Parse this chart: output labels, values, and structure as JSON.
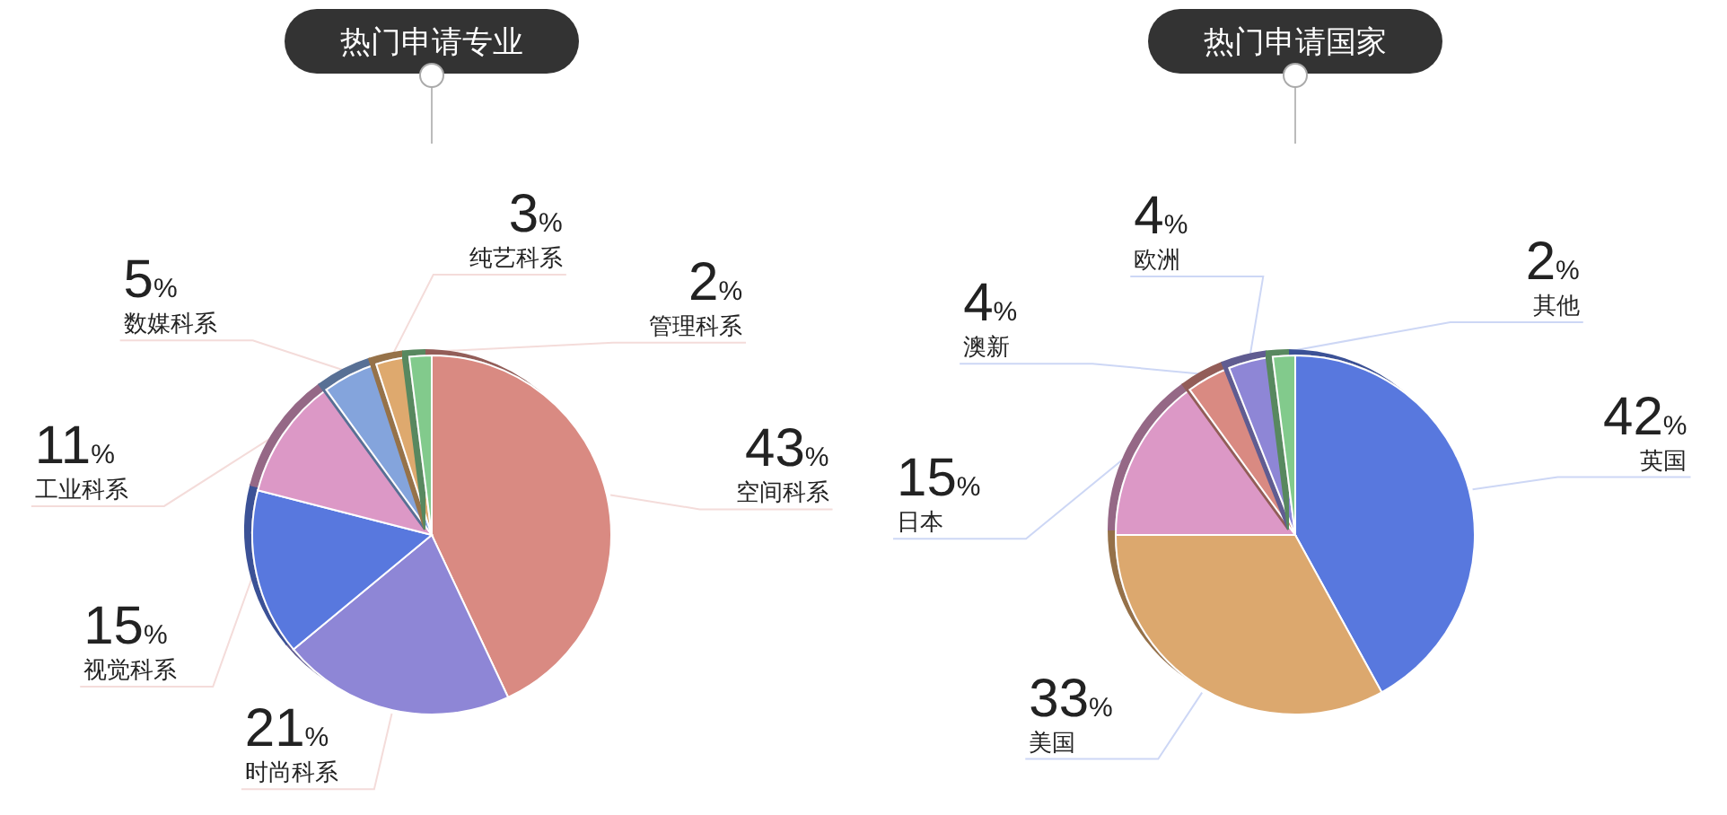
{
  "chart_data": [
    {
      "type": "pie",
      "title": "热门申请专业",
      "categories": [
        "空间科系",
        "时尚科系",
        "视觉科系",
        "工业科系",
        "数媒科系",
        "纯艺科系",
        "管理科系"
      ],
      "values": [
        43,
        21,
        15,
        11,
        5,
        3,
        2
      ],
      "value_labels": [
        "43%",
        "21%",
        "15%",
        "11%",
        "5%",
        "3%",
        "2%"
      ],
      "colors": [
        "#d98a82",
        "#8e86d6",
        "#5878de",
        "#dc98c6",
        "#84a4dc",
        "#dea96e",
        "#82ca8c"
      ]
    },
    {
      "type": "pie",
      "title": "热门申请国家",
      "categories": [
        "英国",
        "美国",
        "日本",
        "澳新",
        "欧洲",
        "其他"
      ],
      "values": [
        42,
        33,
        15,
        4,
        4,
        2
      ],
      "value_labels": [
        "42%",
        "33%",
        "15%",
        "4%",
        "4%",
        "2%"
      ],
      "colors": [
        "#5878de",
        "#dca86e",
        "#dc98c6",
        "#d98a82",
        "#8e86d6",
        "#82ca8c"
      ]
    }
  ]
}
